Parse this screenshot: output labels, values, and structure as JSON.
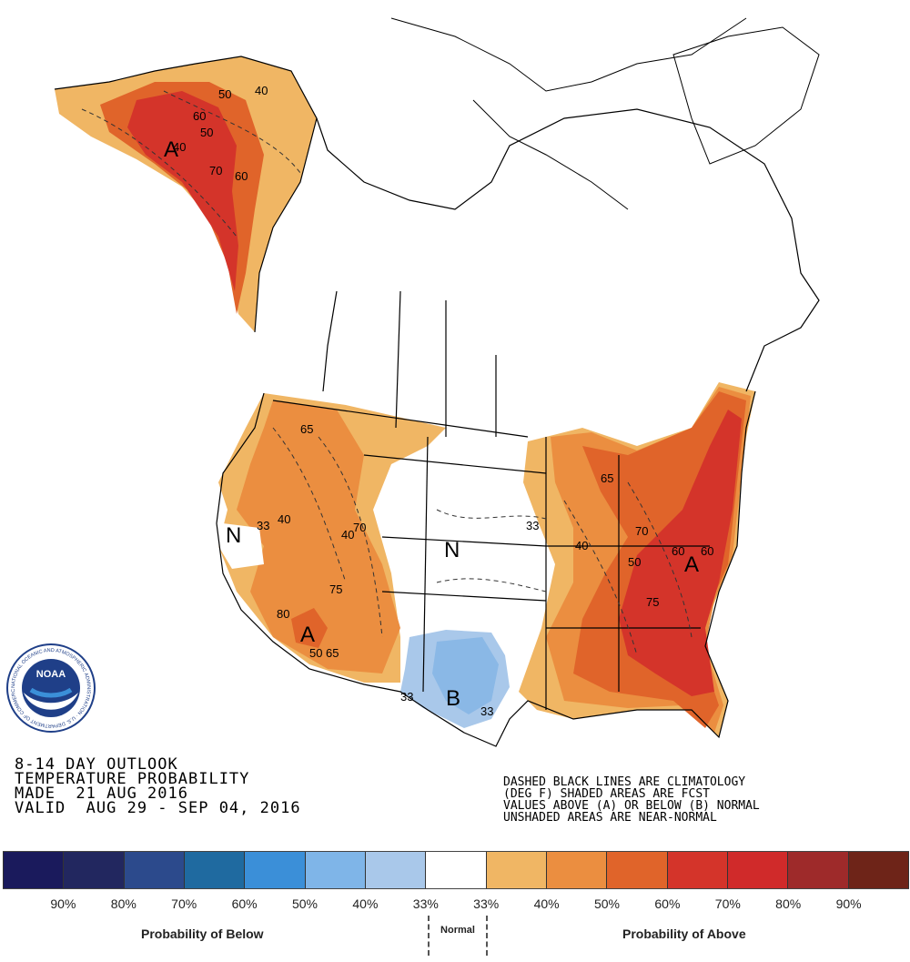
{
  "title": {
    "line1": "8-14 DAY OUTLOOK",
    "line2": "TEMPERATURE PROBABILITY",
    "line3": "MADE  21 AUG 2016",
    "line4": "VALID  AUG 29 - SEP 04, 2016"
  },
  "notes": {
    "line1": "DASHED BLACK LINES ARE CLIMATOLOGY",
    "line2": "(DEG F) SHADED AREAS ARE FCST",
    "line3": "VALUES ABOVE (A) OR BELOW (B) NORMAL",
    "line4": "UNSHADED AREAS ARE NEAR-NORMAL"
  },
  "logo": {
    "name": "NOAA",
    "ring_text": "NATIONAL OCEANIC AND ATMOSPHERIC ADMINISTRATION · U.S. DEPARTMENT OF COMMERCE"
  },
  "legend": {
    "colors": [
      "#1a1a5c",
      "#22275f",
      "#2c4a8c",
      "#1f6aa0",
      "#3b8fd8",
      "#7fb5e8",
      "#a9c8ea",
      "#ffffff",
      "#f0b664",
      "#eb8e40",
      "#e0642a",
      "#d4342a",
      "#d02a2a",
      "#9e2a2a",
      "#6e2418"
    ],
    "ticks": [
      "90%",
      "80%",
      "70%",
      "60%",
      "50%",
      "40%",
      "33%",
      "33%",
      "40%",
      "50%",
      "60%",
      "70%",
      "80%",
      "90%"
    ],
    "below_label": "Probability of Below",
    "normal_label": "Normal",
    "above_label": "Probability of Above"
  },
  "map_labels": {
    "above_letter": "A",
    "below_letter": "B",
    "normal_letter": "N",
    "alaska": [
      "40",
      "50",
      "60",
      "70",
      "60",
      "50",
      "40"
    ],
    "west": [
      "65",
      "40",
      "33",
      "40",
      "70",
      "75",
      "80",
      "50",
      "65"
    ],
    "east": [
      "33",
      "40",
      "50",
      "60",
      "65",
      "70",
      "75",
      "60"
    ],
    "south": [
      "33",
      "33"
    ]
  },
  "colors": {
    "light_orange": "#f0b664",
    "orange": "#eb8e40",
    "dark_orange": "#e0642a",
    "red": "#d4342a",
    "light_blue": "#a9c8ea",
    "blue": "#8ab8e6"
  }
}
